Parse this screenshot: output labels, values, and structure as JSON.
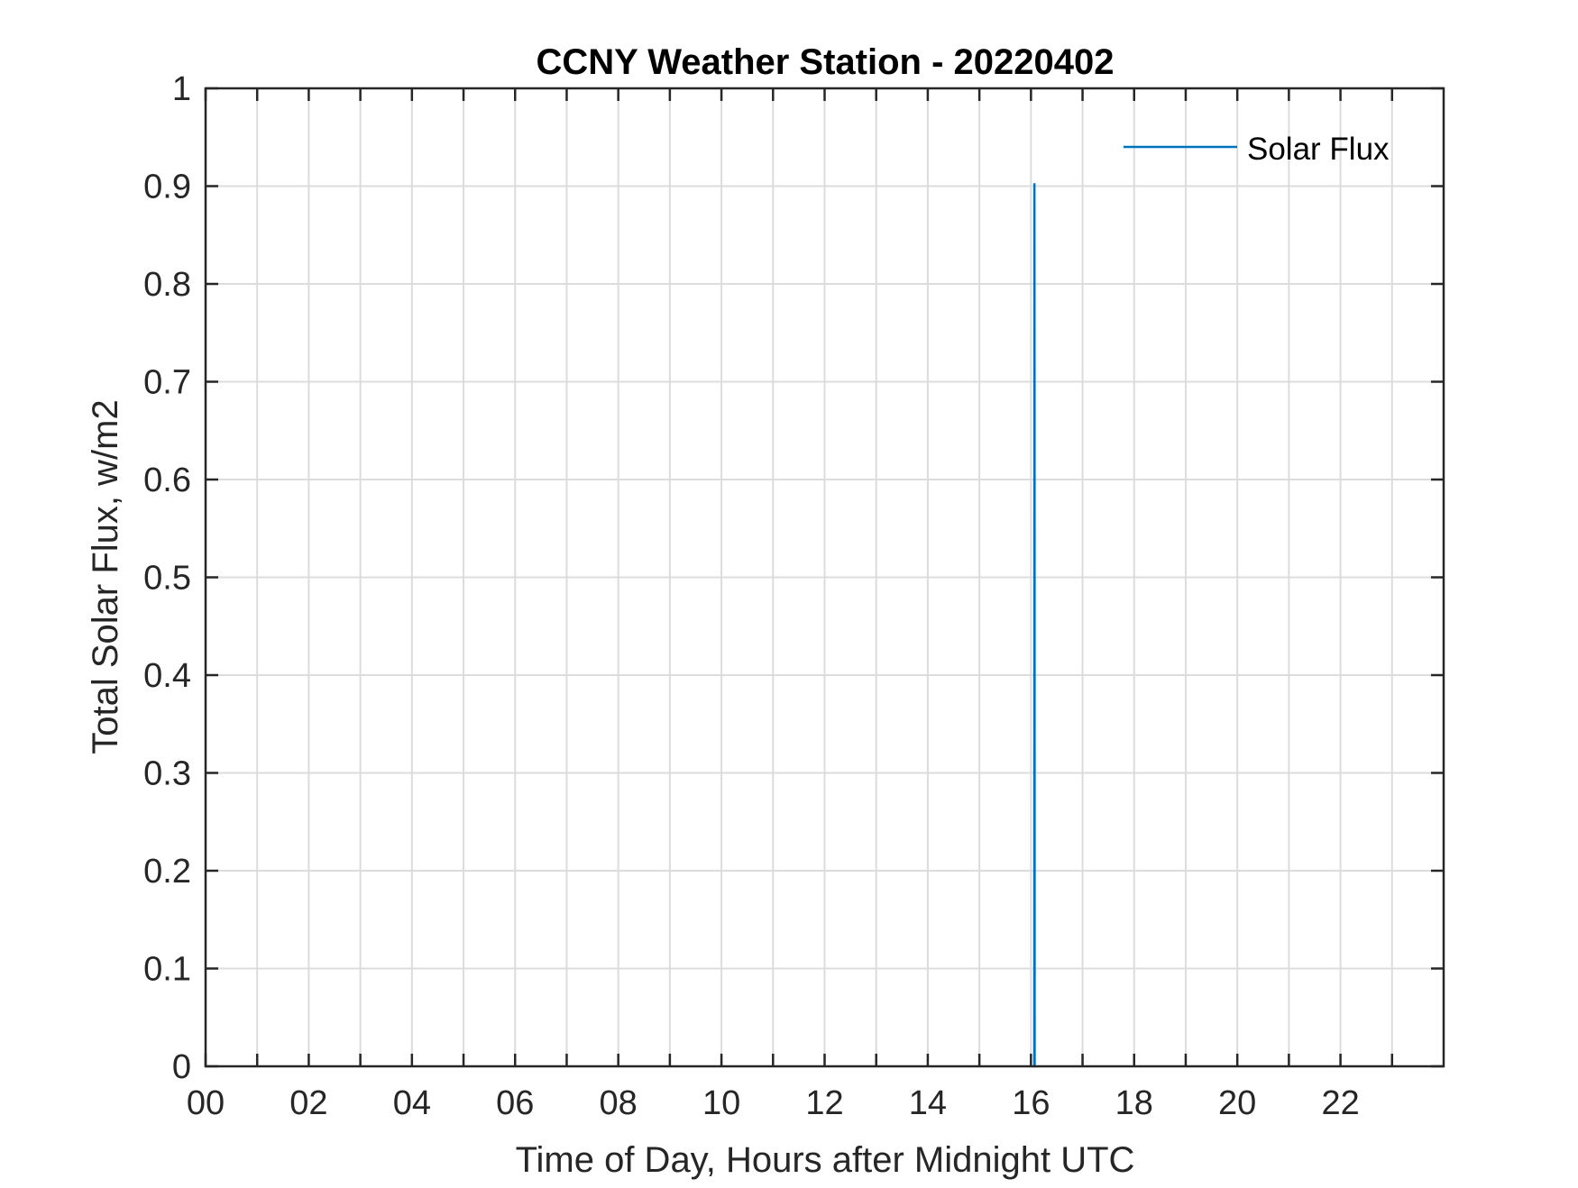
{
  "chart_data": {
    "type": "line",
    "title": "CCNY Weather Station - 20220402",
    "xlabel": "Time of Day, Hours after Midnight UTC",
    "ylabel": "Total Solar Flux, w/m2",
    "xlim": [
      0,
      24
    ],
    "ylim": [
      0,
      1
    ],
    "xticks": [
      0,
      1,
      2,
      3,
      4,
      5,
      6,
      7,
      8,
      9,
      10,
      11,
      12,
      13,
      14,
      15,
      16,
      17,
      18,
      19,
      20,
      21,
      22,
      23
    ],
    "xtick_labels": [
      "00",
      "02",
      "04",
      "06",
      "08",
      "10",
      "12",
      "14",
      "16",
      "18",
      "20",
      "22"
    ],
    "xtick_label_values": [
      0,
      2,
      4,
      6,
      8,
      10,
      12,
      14,
      16,
      18,
      20,
      22
    ],
    "yticks": [
      0,
      0.1,
      0.2,
      0.3,
      0.4,
      0.5,
      0.6,
      0.7,
      0.8,
      0.9,
      1
    ],
    "ytick_labels": [
      "0",
      "0.1",
      "0.2",
      "0.3",
      "0.4",
      "0.5",
      "0.6",
      "0.7",
      "0.8",
      "0.9",
      "1"
    ],
    "grid": true,
    "legend_position": "top-right",
    "series": [
      {
        "name": "Solar Flux",
        "color": "#0072BD",
        "x": [
          16.05,
          16.065,
          16.067,
          16.07,
          16.072,
          16.075
        ],
        "y": [
          0,
          0,
          0.903,
          0.665,
          0,
          0
        ]
      }
    ]
  }
}
